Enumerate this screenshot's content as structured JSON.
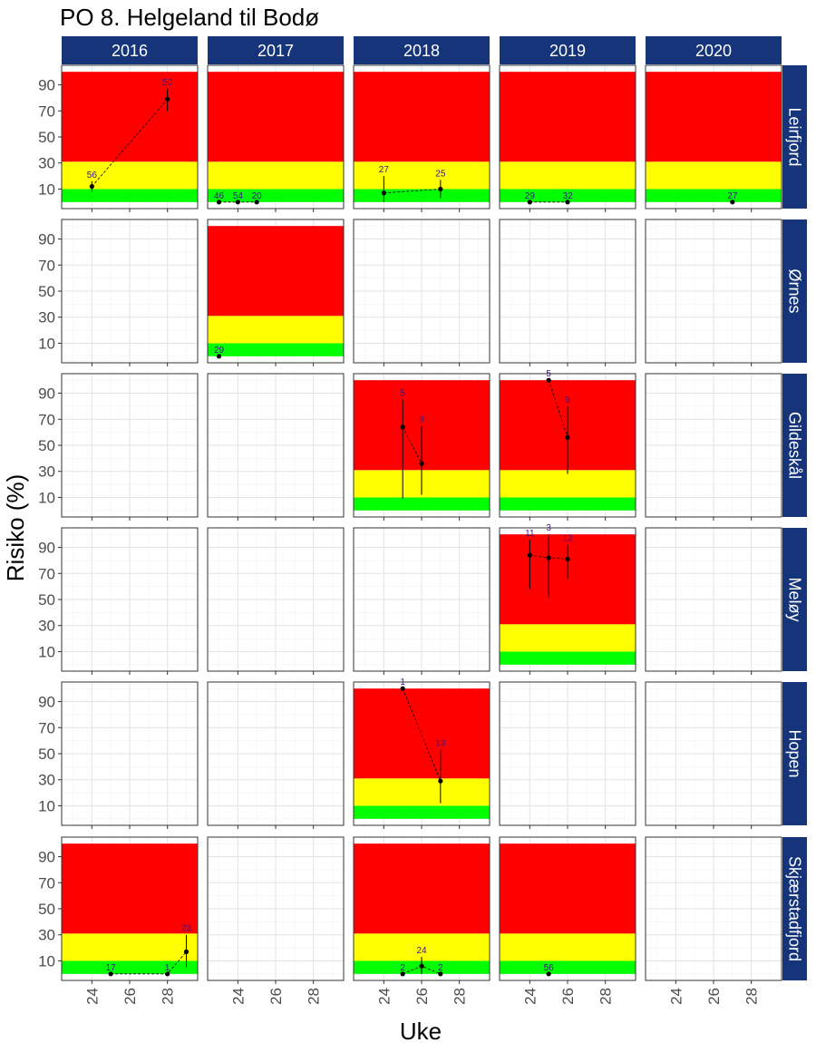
{
  "chart_data": {
    "type": "scatter",
    "title": "PO 8. Helgeland til Bodø",
    "xlabel": "Uke",
    "ylabel": "Risiko (%)",
    "years": [
      "2016",
      "2017",
      "2018",
      "2019",
      "2020"
    ],
    "locations": [
      "Leirfjord",
      "Ørnes",
      "Gildeskål",
      "Meløy",
      "Hopen",
      "Skjærstadfjord"
    ],
    "x_ticks": [
      24,
      26,
      28
    ],
    "y_ticks": [
      10,
      30,
      50,
      70,
      90
    ],
    "xlim": [
      22.4,
      29.6
    ],
    "ylim": [
      -5,
      105
    ],
    "risk_bands": [
      {
        "from": 0,
        "to": 10,
        "color": "#00ff00"
      },
      {
        "from": 10,
        "to": 31,
        "color": "#ffff00"
      },
      {
        "from": 31,
        "to": 100,
        "color": "#ff0000"
      }
    ],
    "strip_color": "#16347a",
    "label_color": "#3a1580",
    "panels": [
      {
        "location": "Leirfjord",
        "year": "2016",
        "bands": true,
        "points": [
          {
            "week": 24,
            "risk": 12,
            "lo": 8,
            "hi": 16,
            "n": "56"
          },
          {
            "week": 28,
            "risk": 79,
            "lo": 70,
            "hi": 87,
            "n": "50"
          }
        ]
      },
      {
        "location": "Leirfjord",
        "year": "2017",
        "bands": true,
        "points": [
          {
            "week": 23,
            "risk": 0,
            "n": "46"
          },
          {
            "week": 24,
            "risk": 0,
            "n": "54"
          },
          {
            "week": 25,
            "risk": 0,
            "n": "20"
          }
        ]
      },
      {
        "location": "Leirfjord",
        "year": "2018",
        "bands": true,
        "points": [
          {
            "week": 24,
            "risk": 7,
            "lo": 0,
            "hi": 20,
            "n": "27"
          },
          {
            "week": 27,
            "risk": 10,
            "lo": 3,
            "hi": 17,
            "n": "25"
          }
        ]
      },
      {
        "location": "Leirfjord",
        "year": "2019",
        "bands": true,
        "points": [
          {
            "week": 24,
            "risk": 0,
            "n": "29"
          },
          {
            "week": 26,
            "risk": 0,
            "n": "32"
          }
        ]
      },
      {
        "location": "Leirfjord",
        "year": "2020",
        "bands": true,
        "points": [
          {
            "week": 27,
            "risk": 0,
            "n": "27"
          }
        ]
      },
      {
        "location": "Ørnes",
        "year": "2016",
        "bands": false,
        "points": []
      },
      {
        "location": "Ørnes",
        "year": "2017",
        "bands": true,
        "points": [
          {
            "week": 23,
            "risk": 0,
            "n": "29"
          }
        ]
      },
      {
        "location": "Ørnes",
        "year": "2018",
        "bands": false,
        "points": []
      },
      {
        "location": "Ørnes",
        "year": "2019",
        "bands": false,
        "points": []
      },
      {
        "location": "Ørnes",
        "year": "2020",
        "bands": false,
        "points": []
      },
      {
        "location": "Gildeskål",
        "year": "2016",
        "bands": false,
        "points": []
      },
      {
        "location": "Gildeskål",
        "year": "2017",
        "bands": false,
        "points": []
      },
      {
        "location": "Gildeskål",
        "year": "2018",
        "bands": true,
        "points": [
          {
            "week": 25,
            "risk": 64,
            "lo": 9,
            "hi": 85,
            "n": "5"
          },
          {
            "week": 26,
            "risk": 36,
            "lo": 12,
            "hi": 65,
            "n": "8"
          }
        ]
      },
      {
        "location": "Gildeskål",
        "year": "2019",
        "bands": true,
        "points": [
          {
            "week": 25,
            "risk": 100,
            "n": "5"
          },
          {
            "week": 26,
            "risk": 56,
            "lo": 28,
            "hi": 80,
            "n": "9"
          }
        ]
      },
      {
        "location": "Gildeskål",
        "year": "2020",
        "bands": false,
        "points": []
      },
      {
        "location": "Meløy",
        "year": "2016",
        "bands": false,
        "points": []
      },
      {
        "location": "Meløy",
        "year": "2017",
        "bands": false,
        "points": []
      },
      {
        "location": "Meløy",
        "year": "2018",
        "bands": false,
        "points": []
      },
      {
        "location": "Meløy",
        "year": "2019",
        "bands": true,
        "points": [
          {
            "week": 24,
            "risk": 84,
            "lo": 58,
            "hi": 96,
            "n": "11"
          },
          {
            "week": 25,
            "risk": 82,
            "lo": 51,
            "hi": 100,
            "n": "3"
          },
          {
            "week": 26,
            "risk": 81,
            "lo": 66,
            "hi": 92,
            "n": "12"
          }
        ]
      },
      {
        "location": "Meløy",
        "year": "2020",
        "bands": false,
        "points": []
      },
      {
        "location": "Hopen",
        "year": "2016",
        "bands": false,
        "points": []
      },
      {
        "location": "Hopen",
        "year": "2017",
        "bands": false,
        "points": []
      },
      {
        "location": "Hopen",
        "year": "2018",
        "bands": true,
        "points": [
          {
            "week": 25,
            "risk": 100,
            "n": "1"
          },
          {
            "week": 27,
            "risk": 29,
            "lo": 12,
            "hi": 53,
            "n": "13"
          }
        ]
      },
      {
        "location": "Hopen",
        "year": "2019",
        "bands": false,
        "points": []
      },
      {
        "location": "Hopen",
        "year": "2020",
        "bands": false,
        "points": []
      },
      {
        "location": "Skjærstadfjord",
        "year": "2016",
        "bands": true,
        "points": [
          {
            "week": 25,
            "risk": 0,
            "n": "17"
          },
          {
            "week": 28,
            "risk": 0,
            "n": "1"
          },
          {
            "week": 29,
            "risk": 17,
            "lo": 5,
            "hi": 30,
            "n": "23"
          }
        ]
      },
      {
        "location": "Skjærstadfjord",
        "year": "2017",
        "bands": false,
        "points": []
      },
      {
        "location": "Skjærstadfjord",
        "year": "2018",
        "bands": true,
        "points": [
          {
            "week": 25,
            "risk": 0,
            "n": "2"
          },
          {
            "week": 26,
            "risk": 6,
            "lo": 0,
            "hi": 13,
            "n": "24"
          },
          {
            "week": 27,
            "risk": 0,
            "n": "2"
          }
        ]
      },
      {
        "location": "Skjærstadfjord",
        "year": "2019",
        "bands": true,
        "points": [
          {
            "week": 25,
            "risk": 0,
            "n": "56"
          }
        ]
      },
      {
        "location": "Skjærstadfjord",
        "year": "2020",
        "bands": false,
        "points": []
      }
    ]
  }
}
